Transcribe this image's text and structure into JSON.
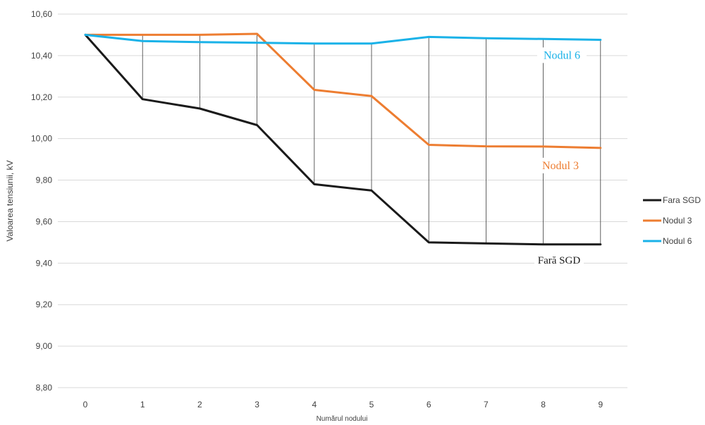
{
  "chart_data": {
    "type": "line",
    "x": [
      0,
      1,
      2,
      3,
      4,
      5,
      6,
      7,
      8,
      9
    ],
    "xlabel": "Numărul nodului",
    "ylabel": "Valoarea tensiunii, kV",
    "ylim": [
      8.8,
      10.6
    ],
    "ystep": 0.2,
    "yticks": [
      "8,80",
      "9,00",
      "9,20",
      "9,40",
      "9,60",
      "9,80",
      "10,00",
      "10,20",
      "10,40",
      "10,60"
    ],
    "xticks": [
      "0",
      "1",
      "2",
      "3",
      "4",
      "5",
      "6",
      "7",
      "8",
      "9"
    ],
    "grid": "horizontal",
    "drop_lines": true,
    "legend_position": "right",
    "series": [
      {
        "name": "Fara SGD",
        "color": "#1a1a1a",
        "values": [
          10.5,
          10.19,
          10.145,
          10.065,
          9.78,
          9.75,
          9.5,
          9.495,
          9.49,
          9.49
        ]
      },
      {
        "name": "Nodul 3",
        "color": "#ed7d31",
        "values": [
          10.5,
          10.5,
          10.5,
          10.505,
          10.235,
          10.205,
          9.97,
          9.963,
          9.962,
          9.955
        ]
      },
      {
        "name": "Nodul 6",
        "color": "#1ab2e8",
        "values": [
          10.5,
          10.47,
          10.465,
          10.462,
          10.458,
          10.458,
          10.49,
          10.484,
          10.48,
          10.476
        ]
      }
    ],
    "annotations": [
      {
        "text": "Nodul 6",
        "series": 2,
        "color": "#1ab2e8"
      },
      {
        "text": "Nodul 3",
        "series": 1,
        "color": "#ed7d31"
      },
      {
        "text": "Fară SGD",
        "series": 0,
        "color": "#1a1a1a"
      }
    ]
  }
}
